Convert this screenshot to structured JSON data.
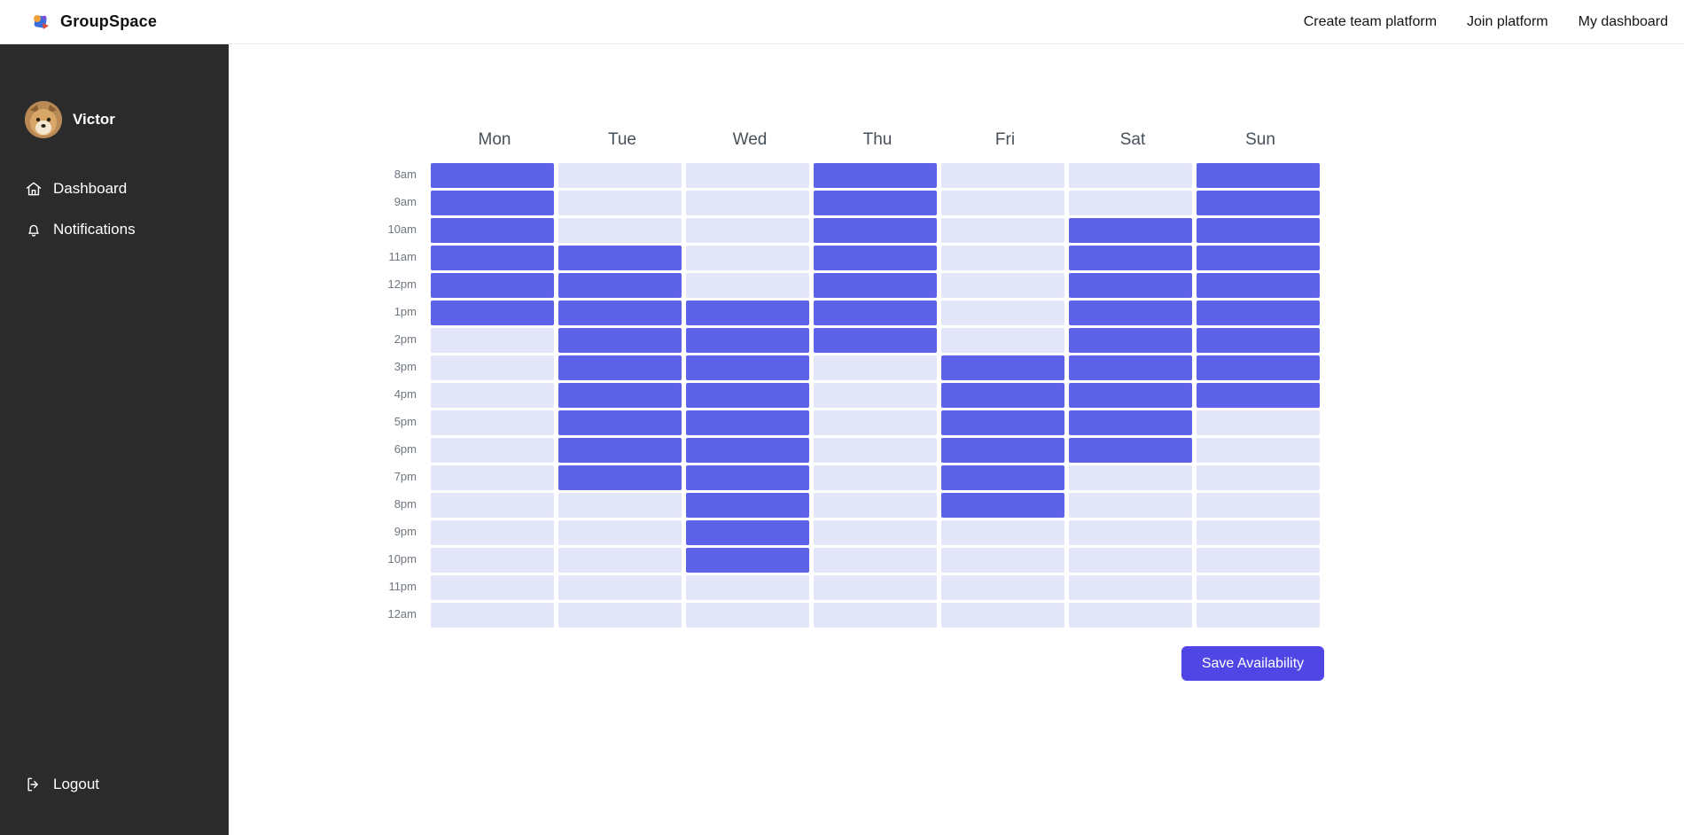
{
  "brand": {
    "name": "GroupSpace"
  },
  "topnav": {
    "links": [
      {
        "label": "Create team platform"
      },
      {
        "label": "Join platform"
      },
      {
        "label": "My dashboard"
      }
    ]
  },
  "sidebar": {
    "user": {
      "name": "Victor"
    },
    "items": [
      {
        "label": "Dashboard",
        "icon": "home-icon"
      },
      {
        "label": "Notifications",
        "icon": "bell-icon"
      }
    ],
    "logout_label": "Logout"
  },
  "availability": {
    "days": [
      "Mon",
      "Tue",
      "Wed",
      "Thu",
      "Fri",
      "Sat",
      "Sun"
    ],
    "times": [
      "8am",
      "9am",
      "10am",
      "11am",
      "12pm",
      "1pm",
      "2pm",
      "3pm",
      "4pm",
      "5pm",
      "6pm",
      "7pm",
      "8pm",
      "9pm",
      "10pm",
      "11pm",
      "12am"
    ],
    "selected": [
      [
        1,
        0,
        0,
        1,
        0,
        0,
        1
      ],
      [
        1,
        0,
        0,
        1,
        0,
        0,
        1
      ],
      [
        1,
        0,
        0,
        1,
        0,
        1,
        1
      ],
      [
        1,
        1,
        0,
        1,
        0,
        1,
        1
      ],
      [
        1,
        1,
        0,
        1,
        0,
        1,
        1
      ],
      [
        1,
        1,
        1,
        1,
        0,
        1,
        1
      ],
      [
        0,
        1,
        1,
        1,
        0,
        1,
        1
      ],
      [
        0,
        1,
        1,
        0,
        1,
        1,
        1
      ],
      [
        0,
        1,
        1,
        0,
        1,
        1,
        1
      ],
      [
        0,
        1,
        1,
        0,
        1,
        1,
        0
      ],
      [
        0,
        1,
        1,
        0,
        1,
        1,
        0
      ],
      [
        0,
        1,
        1,
        0,
        1,
        0,
        0
      ],
      [
        0,
        0,
        1,
        0,
        1,
        0,
        0
      ],
      [
        0,
        0,
        1,
        0,
        0,
        0,
        0
      ],
      [
        0,
        0,
        1,
        0,
        0,
        0,
        0
      ],
      [
        0,
        0,
        0,
        0,
        0,
        0,
        0
      ],
      [
        0,
        0,
        0,
        0,
        0,
        0,
        0
      ]
    ],
    "save_label": "Save Availability"
  },
  "colors": {
    "selected_cell": "#5e62e8",
    "unselected_cell": "#e3e5f8",
    "save_button": "#4f46e5",
    "sidebar_bg": "#2b2b2b",
    "topbar_bg": "#ffffff"
  }
}
